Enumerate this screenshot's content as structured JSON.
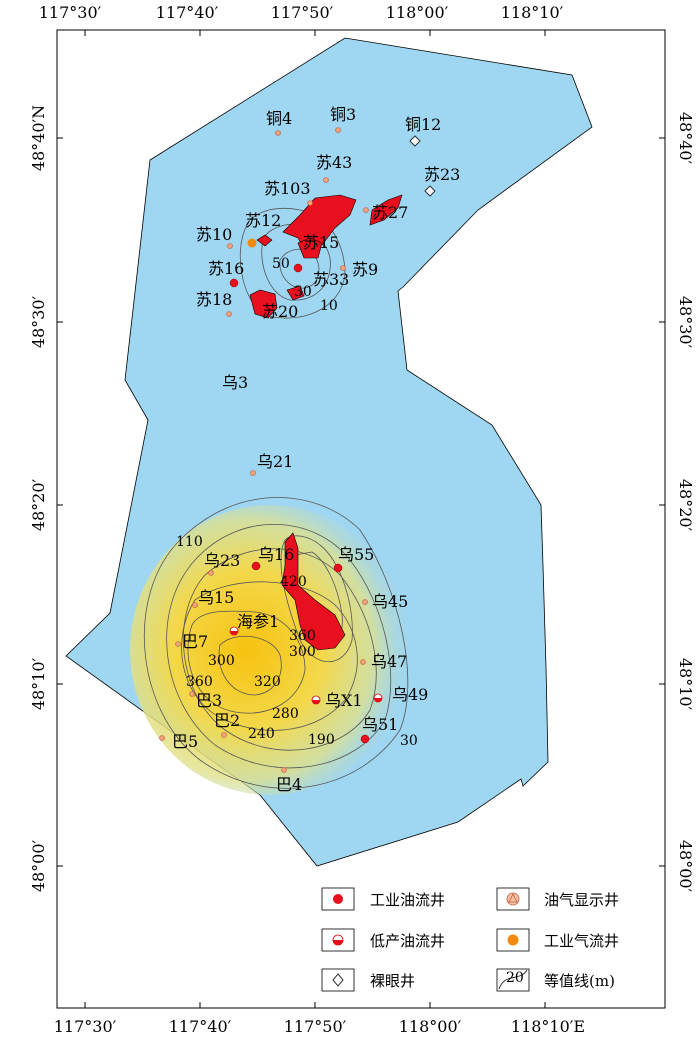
{
  "axes": {
    "top_lon": [
      "117°30′",
      "117°40′",
      "117°50′",
      "118°00′",
      "118°10′"
    ],
    "bottom_lon": [
      "117°30′",
      "117°40′",
      "117°50′",
      "118°00′",
      "118°10′E"
    ],
    "left_lat": [
      "48°40′N",
      "48°30′",
      "48°20′",
      "48°10′",
      "48°00′"
    ],
    "right_lat": [
      "48°40′",
      "48°30′",
      "48°20′",
      "48°10′",
      "48°00′"
    ]
  },
  "wells": {
    "tong4": "铜4",
    "tong3": "铜3",
    "tong12": "铜12",
    "su43": "苏43",
    "su23": "苏23",
    "su103": "苏103",
    "su27": "苏27",
    "su12": "苏12",
    "su10": "苏10",
    "su15": "苏15",
    "su16": "苏16",
    "su33": "苏33",
    "su9": "苏9",
    "su18": "苏18",
    "su20": "苏20",
    "wu3": "乌3",
    "wu21": "乌21",
    "wu23": "乌23",
    "wu16": "乌16",
    "wu55": "乌55",
    "wu15": "乌15",
    "wu45": "乌45",
    "haican1": "海参1",
    "ba7": "巴7",
    "wu47": "乌47",
    "ba3": "巴3",
    "wux1": "乌X1",
    "wu49": "乌49",
    "ba2": "巴2",
    "wu51": "乌51",
    "ba5": "巴5",
    "ba4": "巴4"
  },
  "contours": {
    "c50": "50",
    "c30n": "30",
    "c10": "10",
    "c110": "110",
    "c420": "420",
    "c360a": "360",
    "c300a": "300",
    "c300b": "300",
    "c360b": "360",
    "c320": "320",
    "c280": "280",
    "c240": "240",
    "c190": "190",
    "c30s": "30"
  },
  "legend": {
    "industrial_oil": "工业油流井",
    "oil_gas_show": "油气显示井",
    "low_oil": "低产油流井",
    "industrial_gas": "工业气流井",
    "bare_well": "裸眼井",
    "contour_sample": "20",
    "contour_line": "等值线(m)"
  },
  "colors": {
    "basin": "#9fd6f1",
    "oil_area": "#e8101f",
    "thick_core": "#f5c81a",
    "gas_well": "#f08a10"
  }
}
